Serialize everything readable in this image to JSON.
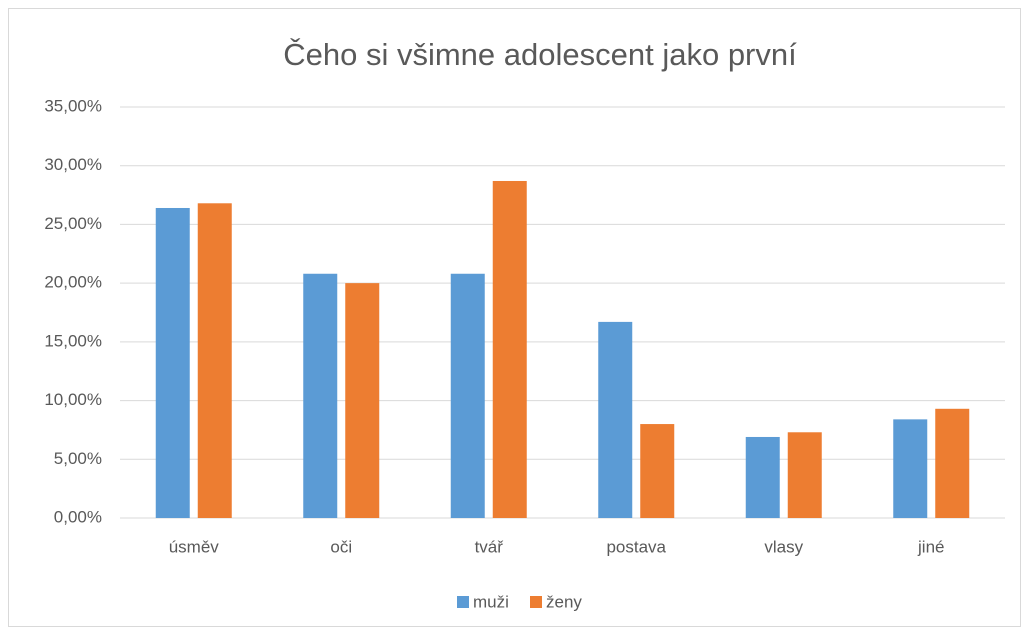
{
  "chart_data": {
    "type": "bar",
    "title": "Čeho si všimne adolescent jako první",
    "categories": [
      "úsměv",
      "oči",
      "tvář",
      "postava",
      "vlasy",
      "jiné"
    ],
    "series": [
      {
        "name": "muži",
        "color": "#5b9bd5",
        "values": [
          26.4,
          20.8,
          20.8,
          16.7,
          6.9,
          8.4
        ]
      },
      {
        "name": "ženy",
        "color": "#ed7d31",
        "values": [
          26.8,
          20.0,
          28.7,
          8.0,
          7.3,
          9.3
        ]
      }
    ],
    "ylim": [
      0,
      35
    ],
    "yticks": [
      {
        "value": 0,
        "label": "0,00%"
      },
      {
        "value": 5,
        "label": "5,00%"
      },
      {
        "value": 10,
        "label": "10,00%"
      },
      {
        "value": 15,
        "label": "15,00%"
      },
      {
        "value": 20,
        "label": "20,00%"
      },
      {
        "value": 25,
        "label": "25,00%"
      },
      {
        "value": 30,
        "label": "30,00%"
      },
      {
        "value": 35,
        "label": "35,00%"
      }
    ],
    "grid": true,
    "legend": "bottom"
  }
}
